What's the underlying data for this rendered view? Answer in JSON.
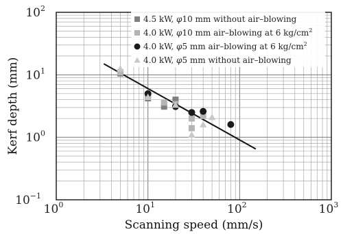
{
  "chart_data": {
    "type": "scatter",
    "title": "",
    "xlabel": "Scanning speed (mm/s)",
    "ylabel": "Kerf depth (mm)",
    "xscale": "log",
    "yscale": "log",
    "xlim": [
      1,
      1000
    ],
    "ylim": [
      0.1,
      100
    ],
    "grid": true,
    "legend_position": "top-right",
    "x_ticks": [
      {
        "base": "10",
        "exp": "0",
        "value": 1
      },
      {
        "base": "10",
        "exp": "1",
        "value": 10
      },
      {
        "base": "10",
        "exp": "2",
        "value": 100
      },
      {
        "base": "10",
        "exp": "3",
        "value": 1000
      }
    ],
    "y_ticks": [
      {
        "base": "10",
        "exp": "−1",
        "value": 0.1
      },
      {
        "base": "10",
        "exp": "0",
        "value": 1
      },
      {
        "base": "10",
        "exp": "1",
        "value": 10
      },
      {
        "base": "10",
        "exp": "2",
        "value": 100
      }
    ],
    "series": [
      {
        "legend_parts": [
          "4.5 kW, ",
          "φ",
          "10 mm without air–blowing",
          ""
        ],
        "marker": "square",
        "color": "#808080",
        "points": [
          [
            5,
            10.5
          ],
          [
            10,
            4.2
          ],
          [
            15,
            3.1
          ],
          [
            20,
            4.0
          ]
        ]
      },
      {
        "legend_parts": [
          "4.0 kW, ",
          "φ",
          "10 mm air–blowing at 6 kg/cm",
          "2"
        ],
        "marker": "square",
        "color": "#b4b4b4",
        "points": [
          [
            5,
            11.0
          ],
          [
            10,
            4.8
          ],
          [
            15,
            3.6
          ],
          [
            20,
            3.4
          ],
          [
            30,
            2.0
          ],
          [
            30,
            1.4
          ],
          [
            40,
            2.2
          ]
        ]
      },
      {
        "legend_parts": [
          "4.0 kW, ",
          "φ",
          "5 mm air–blowing at 6 kg/cm",
          "2"
        ],
        "marker": "circle",
        "color": "#1a1a1a",
        "points": [
          [
            10,
            5.0
          ],
          [
            20,
            3.1
          ],
          [
            30,
            2.5
          ],
          [
            40,
            2.6
          ],
          [
            80,
            1.6
          ]
        ]
      },
      {
        "legend_parts": [
          "4.0 kW, ",
          "φ",
          "5 mm without air–blowing",
          ""
        ],
        "marker": "triangle",
        "color": "#c8c8c8",
        "points": [
          [
            5,
            12.5
          ],
          [
            10,
            4.4
          ],
          [
            20,
            3.3
          ],
          [
            30,
            1.1
          ],
          [
            40,
            1.6
          ],
          [
            50,
            2.1
          ]
        ]
      }
    ],
    "fit_line": {
      "x": [
        3.3,
        150
      ],
      "y": [
        15.0,
        0.65
      ],
      "color": "#111111"
    }
  }
}
